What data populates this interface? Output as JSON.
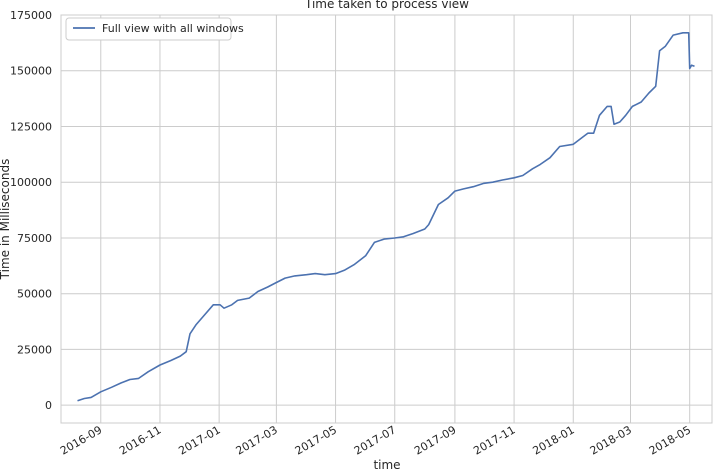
{
  "chart_data": {
    "type": "line",
    "title": "Time taken to process view",
    "xlabel": "time",
    "ylabel": "Time in Milliseconds",
    "x_axis_type": "date",
    "xlim": [
      "2016-07-22",
      "2018-05-24"
    ],
    "ylim": [
      -8000,
      175000
    ],
    "yticks": [
      0,
      25000,
      50000,
      75000,
      100000,
      125000,
      150000,
      175000
    ],
    "xticks": [
      "2016-09",
      "2016-11",
      "2017-01",
      "2017-03",
      "2017-05",
      "2017-07",
      "2017-09",
      "2017-11",
      "2018-01",
      "2018-03",
      "2018-05"
    ],
    "grid": true,
    "legend_position": "top-left",
    "line_color": "#4c72b0",
    "series": [
      {
        "name": "Full view with all windows",
        "points": [
          [
            "2016-08-08",
            2000
          ],
          [
            "2016-08-15",
            3000
          ],
          [
            "2016-08-22",
            3500
          ],
          [
            "2016-09-01",
            6000
          ],
          [
            "2016-09-12",
            8000
          ],
          [
            "2016-09-22",
            10000
          ],
          [
            "2016-10-01",
            11500
          ],
          [
            "2016-10-10",
            12000
          ],
          [
            "2016-10-20",
            15000
          ],
          [
            "2016-11-01",
            18000
          ],
          [
            "2016-11-12",
            20000
          ],
          [
            "2016-11-22",
            22000
          ],
          [
            "2016-11-28",
            24000
          ],
          [
            "2016-12-02",
            32000
          ],
          [
            "2016-12-08",
            36000
          ],
          [
            "2016-12-16",
            40000
          ],
          [
            "2016-12-26",
            45000
          ],
          [
            "2017-01-02",
            45000
          ],
          [
            "2017-01-06",
            43500
          ],
          [
            "2017-01-14",
            45000
          ],
          [
            "2017-01-20",
            47000
          ],
          [
            "2017-02-01",
            48000
          ],
          [
            "2017-02-10",
            51000
          ],
          [
            "2017-02-20",
            53000
          ],
          [
            "2017-03-01",
            55000
          ],
          [
            "2017-03-10",
            57000
          ],
          [
            "2017-03-20",
            58000
          ],
          [
            "2017-04-01",
            58500
          ],
          [
            "2017-04-10",
            59000
          ],
          [
            "2017-04-20",
            58500
          ],
          [
            "2017-05-01",
            59000
          ],
          [
            "2017-05-10",
            60500
          ],
          [
            "2017-05-20",
            63000
          ],
          [
            "2017-06-01",
            67000
          ],
          [
            "2017-06-10",
            73000
          ],
          [
            "2017-06-20",
            74500
          ],
          [
            "2017-07-01",
            75000
          ],
          [
            "2017-07-10",
            75500
          ],
          [
            "2017-07-20",
            77000
          ],
          [
            "2017-08-01",
            79000
          ],
          [
            "2017-08-05",
            81000
          ],
          [
            "2017-08-15",
            90000
          ],
          [
            "2017-08-25",
            93000
          ],
          [
            "2017-09-01",
            96000
          ],
          [
            "2017-09-10",
            97000
          ],
          [
            "2017-09-20",
            98000
          ],
          [
            "2017-10-01",
            99500
          ],
          [
            "2017-10-10",
            100000
          ],
          [
            "2017-10-20",
            101000
          ],
          [
            "2017-11-01",
            102000
          ],
          [
            "2017-11-10",
            103000
          ],
          [
            "2017-11-20",
            106000
          ],
          [
            "2017-11-28",
            108000
          ],
          [
            "2017-12-08",
            111000
          ],
          [
            "2017-12-18",
            116000
          ],
          [
            "2018-01-01",
            117000
          ],
          [
            "2018-01-10",
            120000
          ],
          [
            "2018-01-16",
            122000
          ],
          [
            "2018-01-22",
            122000
          ],
          [
            "2018-01-28",
            130000
          ],
          [
            "2018-02-05",
            134000
          ],
          [
            "2018-02-09",
            134000
          ],
          [
            "2018-02-12",
            126000
          ],
          [
            "2018-02-18",
            127000
          ],
          [
            "2018-02-24",
            130000
          ],
          [
            "2018-03-03",
            134000
          ],
          [
            "2018-03-12",
            136000
          ],
          [
            "2018-03-20",
            140000
          ],
          [
            "2018-03-27",
            143000
          ],
          [
            "2018-03-31",
            159000
          ],
          [
            "2018-04-06",
            161000
          ],
          [
            "2018-04-14",
            166000
          ],
          [
            "2018-04-24",
            167000
          ],
          [
            "2018-04-30",
            167000
          ],
          [
            "2018-05-01",
            151000
          ],
          [
            "2018-05-03",
            152500
          ],
          [
            "2018-05-06",
            152000
          ]
        ]
      }
    ]
  }
}
